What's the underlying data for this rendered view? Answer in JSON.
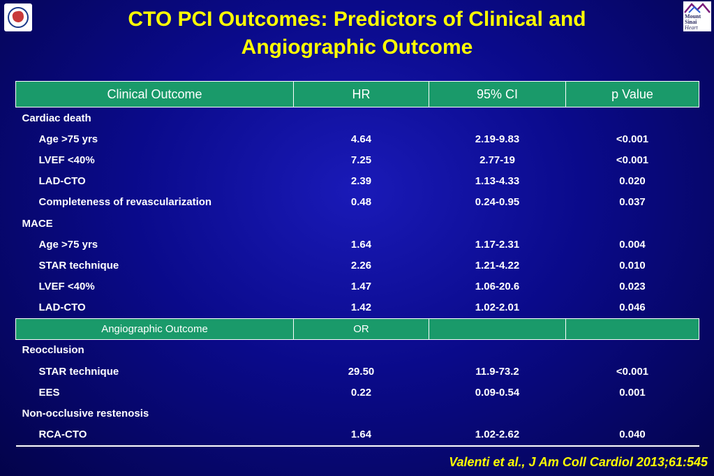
{
  "slide": {
    "title_line1": "CTO PCI Outcomes: Predictors of Clinical and",
    "title_line2": "Angiographic Outcome",
    "logo_right_lines": [
      "Mount",
      "Sinai",
      "Heart"
    ],
    "citation": "Valenti et al., J Am Coll Cardiol 2013;61:545"
  },
  "colors": {
    "background": "#0a0a8a",
    "title": "#ffff00",
    "header": "#1a9a6a",
    "text": "#ffffff"
  },
  "table": {
    "headers": [
      "Clinical Outcome",
      "HR",
      "95% CI",
      "p Value"
    ],
    "clinical_rows": [
      {
        "type": "group",
        "label": "Cardiac death",
        "hr": "",
        "ci": "",
        "p": ""
      },
      {
        "type": "item",
        "label": "Age >75 yrs",
        "hr": "4.64",
        "ci": "2.19-9.83",
        "p": "<0.001"
      },
      {
        "type": "item",
        "label": "LVEF <40%",
        "hr": "7.25",
        "ci": "2.77-19",
        "p": "<0.001"
      },
      {
        "type": "item",
        "label": "LAD-CTO",
        "hr": "2.39",
        "ci": "1.13-4.33",
        "p": "0.020"
      },
      {
        "type": "item",
        "label": "Completeness of revascularization",
        "hr": "0.48",
        "ci": "0.24-0.95",
        "p": "0.037"
      },
      {
        "type": "group",
        "label": "MACE",
        "hr": "",
        "ci": "",
        "p": ""
      },
      {
        "type": "item",
        "label": "Age >75 yrs",
        "hr": "1.64",
        "ci": "1.17-2.31",
        "p": "0.004"
      },
      {
        "type": "item",
        "label": "STAR technique",
        "hr": "2.26",
        "ci": "1.21-4.22",
        "p": "0.010"
      },
      {
        "type": "item",
        "label": "LVEF <40%",
        "hr": "1.47",
        "ci": "1.06-20.6",
        "p": "0.023"
      },
      {
        "type": "item",
        "label": "LAD-CTO",
        "hr": "1.42",
        "ci": "1.02-2.01",
        "p": "0.046"
      }
    ],
    "sub_header": [
      "Angiographic Outcome",
      "OR",
      "",
      ""
    ],
    "angiographic_rows": [
      {
        "type": "group",
        "label": "Reocclusion",
        "hr": "",
        "ci": "",
        "p": ""
      },
      {
        "type": "item",
        "label": "STAR technique",
        "hr": "29.50",
        "ci": "11.9-73.2",
        "p": "<0.001"
      },
      {
        "type": "item",
        "label": "EES",
        "hr": "0.22",
        "ci": "0.09-0.54",
        "p": "0.001"
      },
      {
        "type": "group",
        "label": "Non-occlusive restenosis",
        "hr": "",
        "ci": "",
        "p": ""
      },
      {
        "type": "item",
        "label": "RCA-CTO",
        "hr": "1.64",
        "ci": "1.02-2.62",
        "p": "0.040"
      }
    ]
  }
}
